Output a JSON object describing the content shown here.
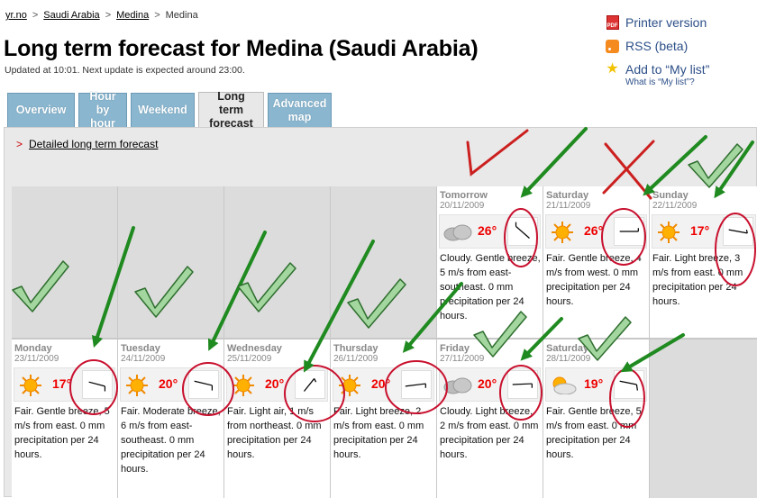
{
  "breadcrumbs": [
    "yr.no",
    "Saudi Arabia",
    "Medina",
    "Medina"
  ],
  "breadcrumb_sep": ">",
  "title": "Long term forecast for Medina (Saudi Arabia)",
  "updated": "Updated at 10:01. Next update is expected around 23:00.",
  "side_links": {
    "printer": "Printer version",
    "pdf_badge": "PDF",
    "rss": "RSS (beta)",
    "mylist": "Add to “My list”",
    "whatis": "What is “My list”?"
  },
  "tabs": [
    {
      "label": "Overview"
    },
    {
      "label": "Hour by hour"
    },
    {
      "label": "Weekend"
    },
    {
      "label": "Long term forecast"
    },
    {
      "label": "Advanced map"
    }
  ],
  "detail_link": "Detailed long term forecast",
  "detail_arrow": ">",
  "days_row1": [
    {
      "day": "Tomorrow",
      "date": "20/11/2009",
      "icon": "cloud-icon",
      "temp": "26°",
      "desc": "Cloudy. Gentle breeze, 5 m/s from east-southeast. 0 mm precipitation per 24 hours."
    },
    {
      "day": "Saturday",
      "date": "21/11/2009",
      "icon": "sun-icon",
      "temp": "26°",
      "desc": "Fair. Gentle breeze, 4 m/s from west. 0 mm precipitation per 24 hours."
    },
    {
      "day": "Sunday",
      "date": "22/11/2009",
      "icon": "sun-icon",
      "temp": "17°",
      "desc": "Fair. Light breeze, 3 m/s from east. 0 mm precipitation per 24 hours."
    }
  ],
  "days_row2": [
    {
      "day": "Monday",
      "date": "23/11/2009",
      "icon": "sun-icon",
      "temp": "17°",
      "desc": "Fair. Gentle breeze, 5 m/s from east. 0 mm precipitation per 24 hours."
    },
    {
      "day": "Tuesday",
      "date": "24/11/2009",
      "icon": "sun-icon",
      "temp": "20°",
      "desc": "Fair. Moderate breeze, 6 m/s from east-southeast. 0 mm precipitation per 24 hours."
    },
    {
      "day": "Wednesday",
      "date": "25/11/2009",
      "icon": "sun-icon",
      "temp": "20°",
      "desc": "Fair. Light air, 1 m/s from northeast. 0 mm precipitation per 24 hours."
    },
    {
      "day": "Thursday",
      "date": "26/11/2009",
      "icon": "sun-icon",
      "temp": "20°",
      "desc": "Fair. Light breeze, 2 m/s from east. 0 mm precipitation per 24 hours."
    },
    {
      "day": "Friday",
      "date": "27/11/2009",
      "icon": "cloud-icon",
      "temp": "20°",
      "desc": "Cloudy. Light breeze, 2 m/s from east. 0 mm precipitation per 24 hours."
    },
    {
      "day": "Saturday",
      "date": "28/11/2009",
      "icon": "partly-cloudy-icon",
      "temp": "19°",
      "desc": "Fair. Gentle breeze, 5 m/s from east. 0 mm precipitation per 24 hours."
    }
  ],
  "colors": {
    "tab": "#8ab6cf",
    "temp": "#e00000",
    "annotation_green": "#1f8a1f",
    "annotation_red": "#cc1f1f"
  }
}
